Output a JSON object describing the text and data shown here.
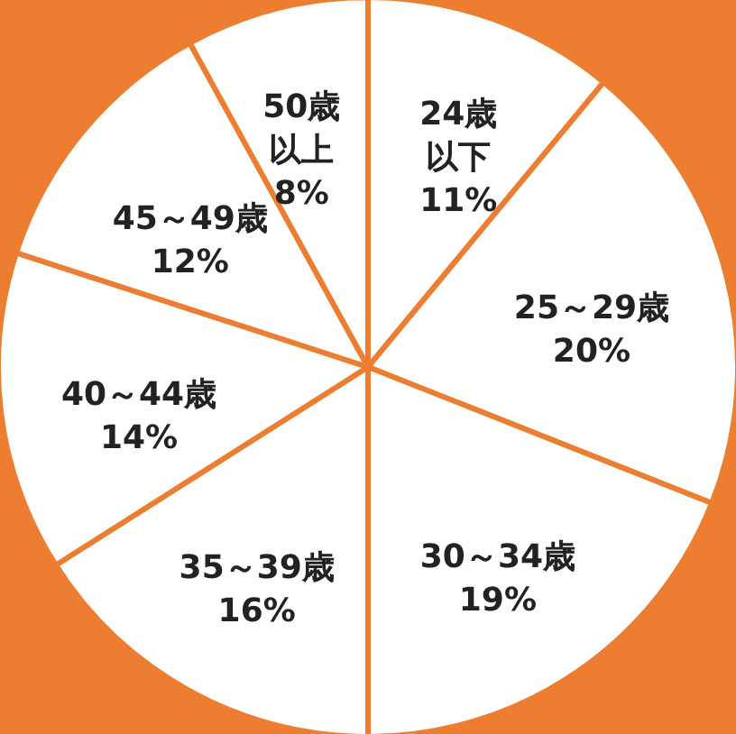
{
  "chart_data": {
    "type": "pie",
    "categories": [
      "24歳以下",
      "25～29歳",
      "30～34歳",
      "35～39歳",
      "40～44歳",
      "45～49歳",
      "50歳以上"
    ],
    "values": [
      11,
      20,
      19,
      16,
      14,
      12,
      8
    ],
    "value_labels": [
      "11%",
      "20%",
      "19%",
      "16%",
      "14%",
      "12%",
      "8%"
    ],
    "colors": [
      "#ffffff",
      "#ffffff",
      "#ffffff",
      "#ffffff",
      "#ffffff",
      "#ffffff",
      "#ffffff"
    ]
  }
}
